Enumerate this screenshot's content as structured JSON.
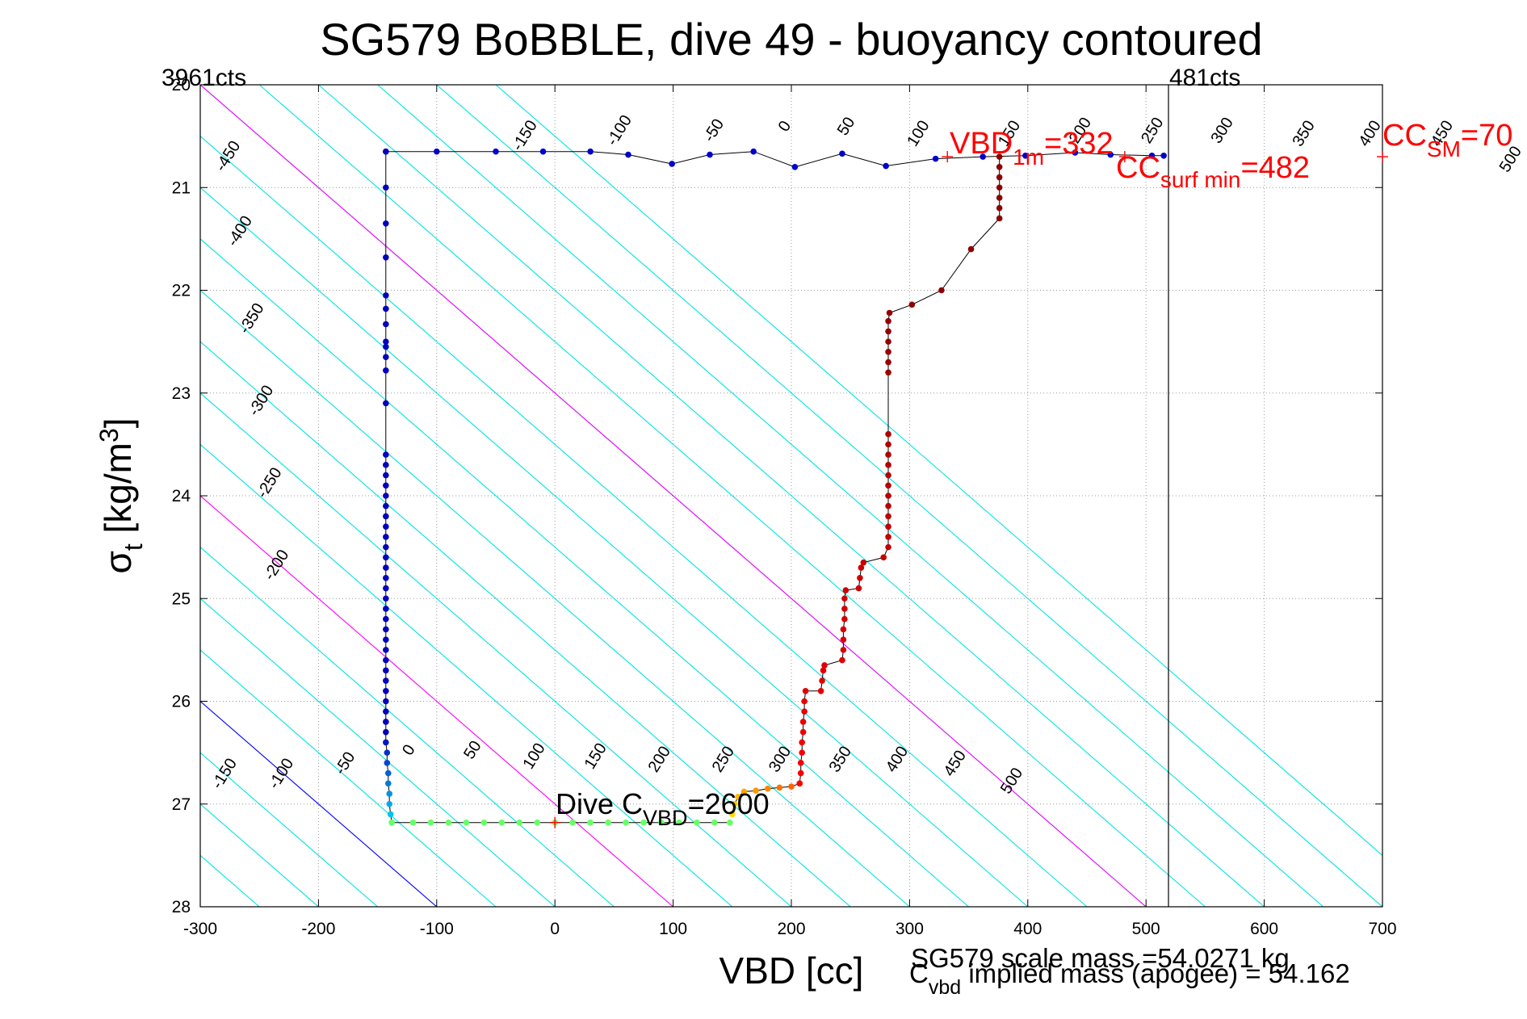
{
  "chart_data": {
    "type": "scatter",
    "title": "SG579 BoBBLE, dive 49 - buoyancy contoured",
    "xlabel": "VBD [cc]",
    "ylabel_main": "σ",
    "ylabel_sub": "t",
    "ylabel_unit": " [kg/m",
    "ylabel_sup": "3",
    "ylabel_close": "]",
    "xlim": [
      -300,
      700
    ],
    "ylim": [
      20,
      28
    ],
    "y_reversed": true,
    "grid": true,
    "xticks": [
      -300,
      -200,
      -100,
      0,
      100,
      200,
      300,
      400,
      500,
      600,
      700
    ],
    "yticks": [
      20,
      21,
      22,
      23,
      24,
      25,
      26,
      27,
      28
    ],
    "colors": {
      "contour": "#00e5e5",
      "dive_cvbd_line": "#0000ff",
      "magenta_line": "#ff00ff",
      "annotation": "#ff0000",
      "profile_line": "#000000",
      "dive_points": "#0000cc",
      "bottom_points": "#66ff66",
      "climb_points": "#aa0000"
    },
    "contour_lines": {
      "slope_vbd_per_sigma": 100,
      "cyan_offsets": [
        -550,
        -500,
        -450,
        -400,
        -350,
        -300,
        -250,
        -200,
        -150,
        -100,
        -50,
        50,
        100,
        150,
        250,
        300,
        350,
        400,
        450,
        500,
        550,
        600,
        650,
        700,
        750,
        800,
        850
      ],
      "blue_offset": 0,
      "magenta_offsets": [
        200,
        600
      ],
      "note_vbd_at_sigma27": "vbd = offset + 100*(sigma - 27) - 200"
    },
    "contour_labels_upper": [
      {
        "text": "-450",
        "x": -273,
        "y": 20.72
      },
      {
        "text": "-400",
        "x": -263,
        "y": 21.45
      },
      {
        "text": "-350",
        "x": -253,
        "y": 22.3
      },
      {
        "text": "-300",
        "x": -245,
        "y": 23.1
      },
      {
        "text": "-250",
        "x": -238,
        "y": 23.9
      },
      {
        "text": "-200",
        "x": -232,
        "y": 24.7
      },
      {
        "text": "-150",
        "x": -22,
        "y": 20.52
      },
      {
        "text": "-100",
        "x": 58,
        "y": 20.47
      },
      {
        "text": "-50",
        "x": 138,
        "y": 20.47
      },
      {
        "text": "0",
        "x": 198,
        "y": 20.43
      },
      {
        "text": "50",
        "x": 250,
        "y": 20.43
      },
      {
        "text": "100",
        "x": 311,
        "y": 20.5
      },
      {
        "text": "150",
        "x": 388,
        "y": 20.5
      },
      {
        "text": "200",
        "x": 448,
        "y": 20.47
      },
      {
        "text": "250",
        "x": 509,
        "y": 20.47
      },
      {
        "text": "300",
        "x": 568,
        "y": 20.47
      },
      {
        "text": "350",
        "x": 637,
        "y": 20.5
      },
      {
        "text": "400",
        "x": 693,
        "y": 20.5
      },
      {
        "text": "450",
        "x": 754,
        "y": 20.5
      },
      {
        "text": "500",
        "x": 812,
        "y": 20.75
      }
    ],
    "contour_labels_lower": [
      {
        "text": "-150",
        "x": -276,
        "y": 26.73
      },
      {
        "text": "-100",
        "x": -228,
        "y": 26.73
      },
      {
        "text": "-50",
        "x": -174,
        "y": 26.63
      },
      {
        "text": "0",
        "x": -120,
        "y": 26.5
      },
      {
        "text": "50",
        "x": -66,
        "y": 26.5
      },
      {
        "text": "100",
        "x": -14,
        "y": 26.56
      },
      {
        "text": "150",
        "x": 38,
        "y": 26.56
      },
      {
        "text": "200",
        "x": 92,
        "y": 26.59
      },
      {
        "text": "250",
        "x": 146,
        "y": 26.59
      },
      {
        "text": "300",
        "x": 194,
        "y": 26.59
      },
      {
        "text": "350",
        "x": 245,
        "y": 26.59
      },
      {
        "text": "400",
        "x": 293,
        "y": 26.59
      },
      {
        "text": "450",
        "x": 342,
        "y": 26.63
      },
      {
        "text": "500",
        "x": 390,
        "y": 26.8
      }
    ],
    "vertical_marker": {
      "x": 519,
      "label_left": "3961cts",
      "label_right": "481cts"
    },
    "annotations": {
      "vbd_1m_main": "VBD",
      "vbd_1m_sub": "1m",
      "vbd_1m_value": "=332",
      "cc_surf_main": "CC",
      "cc_surf_sub": "surf min",
      "cc_surf_value": "=482",
      "cc_sm_main": "CC",
      "cc_sm_sub": "SM",
      "cc_sm_value": "=70",
      "dive_cvbd_main": "Dive C",
      "dive_cvbd_sub": "VBD",
      "dive_cvbd_value": "=2600",
      "scale_mass": "SG579 scale mass =54.0271 kg",
      "implied_main": "C",
      "implied_sub": "vbd",
      "implied_rest": " implied mass (apogee) = 54.162"
    },
    "red_plus_markers": [
      {
        "x": 332,
        "y": 20.7
      },
      {
        "x": 482,
        "y": 20.7
      },
      {
        "x": 700,
        "y": 20.7
      },
      {
        "x": 0,
        "y": 27.18
      }
    ],
    "series": [
      {
        "name": "",
        "role": "dive",
        "points": [
          [
            -143,
            20.65
          ],
          [
            -100,
            20.65
          ],
          [
            -50,
            20.65
          ],
          [
            -10,
            20.65
          ],
          [
            30,
            20.65
          ],
          [
            62,
            20.68
          ],
          [
            99,
            20.77
          ],
          [
            131,
            20.68
          ],
          [
            168,
            20.65
          ],
          [
            203,
            20.8
          ],
          [
            243,
            20.67
          ],
          [
            280,
            20.79
          ],
          [
            322,
            20.72
          ],
          [
            362,
            20.7
          ],
          [
            398,
            20.69
          ],
          [
            440,
            20.66
          ],
          [
            470,
            20.68
          ],
          [
            505,
            20.69
          ],
          [
            515,
            20.69
          ]
        ]
      },
      {
        "name": "",
        "role": "descent",
        "points": [
          [
            -143,
            20.65
          ],
          [
            -143,
            21.0
          ],
          [
            -143,
            21.35
          ],
          [
            -143,
            21.68
          ],
          [
            -143,
            22.05
          ],
          [
            -143,
            22.18
          ],
          [
            -143,
            22.33
          ],
          [
            -143,
            22.5
          ],
          [
            -143,
            22.55
          ],
          [
            -143,
            22.65
          ],
          [
            -143,
            22.78
          ],
          [
            -143,
            23.1
          ],
          [
            -143,
            23.6
          ],
          [
            -143,
            23.7
          ],
          [
            -143,
            23.8
          ],
          [
            -143,
            23.9
          ],
          [
            -143,
            24.0
          ],
          [
            -143,
            24.1
          ],
          [
            -143,
            24.2
          ],
          [
            -143,
            24.3
          ],
          [
            -143,
            24.4
          ],
          [
            -143,
            24.5
          ],
          [
            -143,
            24.6
          ],
          [
            -143,
            24.7
          ],
          [
            -143,
            24.8
          ],
          [
            -143,
            24.9
          ],
          [
            -143,
            25.0
          ],
          [
            -143,
            25.1
          ],
          [
            -143,
            25.2
          ],
          [
            -143,
            25.3
          ],
          [
            -143,
            25.4
          ],
          [
            -143,
            25.5
          ],
          [
            -143,
            25.6
          ],
          [
            -143,
            25.7
          ],
          [
            -143,
            25.8
          ],
          [
            -143,
            25.9
          ],
          [
            -143,
            26.0
          ],
          [
            -143,
            26.1
          ],
          [
            -143,
            26.2
          ],
          [
            -143,
            26.3
          ],
          [
            -143,
            26.4
          ],
          [
            -142,
            26.5
          ],
          [
            -142,
            26.6
          ],
          [
            -141,
            26.7
          ],
          [
            -141,
            26.8
          ],
          [
            -140,
            26.9
          ],
          [
            -140,
            27.0
          ],
          [
            -139,
            27.1
          ],
          [
            -138,
            27.18
          ]
        ]
      },
      {
        "name": "",
        "role": "bottom",
        "points": [
          [
            -138,
            27.18
          ],
          [
            -120,
            27.18
          ],
          [
            -105,
            27.18
          ],
          [
            -90,
            27.18
          ],
          [
            -75,
            27.18
          ],
          [
            -60,
            27.18
          ],
          [
            -45,
            27.18
          ],
          [
            -30,
            27.18
          ],
          [
            -15,
            27.18
          ],
          [
            0,
            27.18
          ],
          [
            15,
            27.18
          ],
          [
            30,
            27.18
          ],
          [
            45,
            27.18
          ],
          [
            60,
            27.18
          ],
          [
            75,
            27.18
          ],
          [
            90,
            27.18
          ],
          [
            105,
            27.18
          ],
          [
            120,
            27.18
          ],
          [
            135,
            27.18
          ],
          [
            148,
            27.18
          ]
        ]
      },
      {
        "name": "",
        "role": "turn",
        "points": [
          [
            150,
            27.1
          ],
          [
            152,
            27.0
          ],
          [
            155,
            26.93
          ],
          [
            160,
            26.88
          ],
          [
            170,
            26.87
          ],
          [
            180,
            26.85
          ],
          [
            190,
            26.84
          ],
          [
            200,
            26.83
          ],
          [
            207,
            26.8
          ]
        ]
      },
      {
        "name": "",
        "role": "climb",
        "points": [
          [
            207,
            26.8
          ],
          [
            208,
            26.7
          ],
          [
            208,
            26.6
          ],
          [
            209,
            26.5
          ],
          [
            209,
            26.4
          ],
          [
            210,
            26.3
          ],
          [
            210,
            26.2
          ],
          [
            211,
            26.1
          ],
          [
            211,
            26.0
          ],
          [
            212,
            25.9
          ],
          [
            225,
            25.9
          ],
          [
            226,
            25.8
          ],
          [
            227,
            25.7
          ],
          [
            228,
            25.65
          ],
          [
            243,
            25.6
          ],
          [
            244,
            25.5
          ],
          [
            244,
            25.4
          ],
          [
            244,
            25.3
          ],
          [
            245,
            25.2
          ],
          [
            245,
            25.1
          ],
          [
            245,
            25.0
          ],
          [
            246,
            24.92
          ],
          [
            257,
            24.9
          ],
          [
            258,
            24.8
          ],
          [
            259,
            24.7
          ],
          [
            261,
            24.65
          ],
          [
            278,
            24.6
          ],
          [
            282,
            24.5
          ],
          [
            282,
            24.4
          ],
          [
            282,
            24.3
          ],
          [
            282,
            24.2
          ],
          [
            282,
            24.1
          ],
          [
            282,
            24.0
          ],
          [
            282,
            23.9
          ],
          [
            282,
            23.8
          ],
          [
            282,
            23.7
          ],
          [
            282,
            23.6
          ],
          [
            282,
            23.5
          ],
          [
            282,
            23.4
          ],
          [
            282,
            22.8
          ],
          [
            282,
            22.7
          ],
          [
            282,
            22.6
          ],
          [
            282,
            22.5
          ],
          [
            282,
            22.4
          ],
          [
            282,
            22.3
          ],
          [
            283,
            22.22
          ],
          [
            302,
            22.14
          ],
          [
            327,
            22.0
          ],
          [
            352,
            21.6
          ],
          [
            376,
            21.3
          ],
          [
            376,
            21.2
          ],
          [
            376,
            21.1
          ],
          [
            376,
            21.0
          ],
          [
            376,
            20.9
          ],
          [
            376,
            20.8
          ],
          [
            376,
            20.7
          ]
        ]
      }
    ]
  }
}
